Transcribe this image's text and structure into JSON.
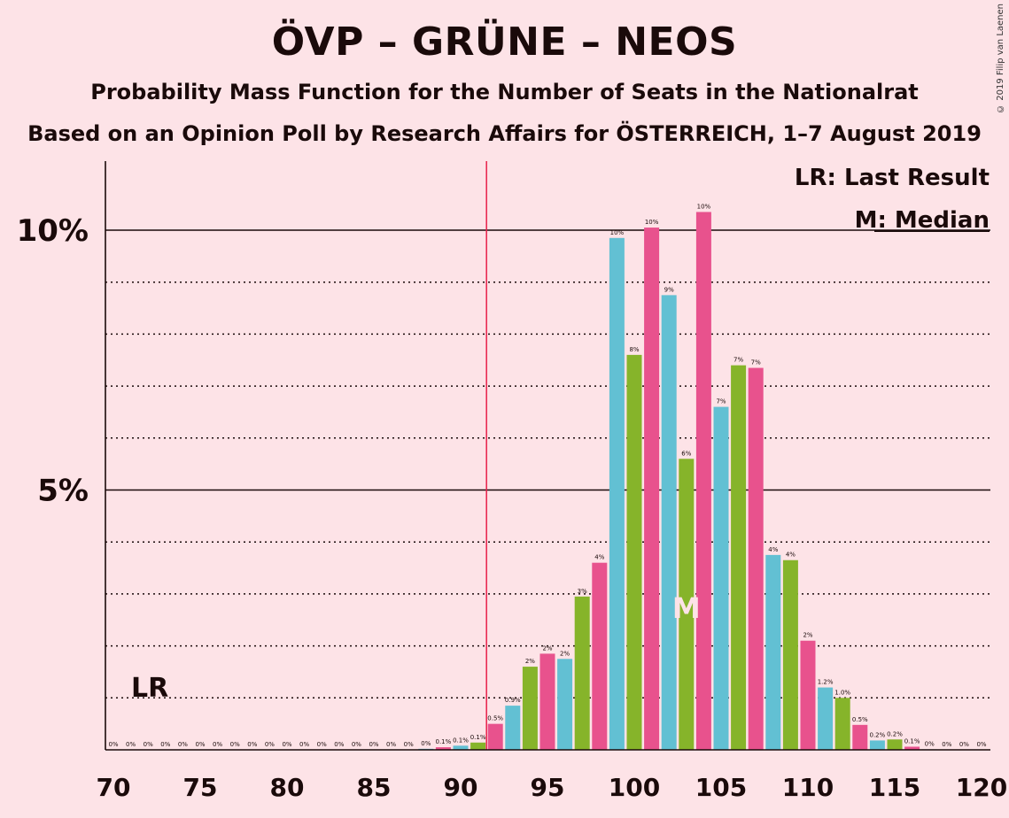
{
  "chart_data": {
    "type": "bar",
    "title": "ÖVP – GRÜNE – NEOS",
    "subtitle": "Probability Mass Function for the Number of Seats in the Nationalrat",
    "subtitle2": "Based on an Opinion Poll by Research Affairs for ÖSTERREICH, 1–7 August 2019",
    "copyright": "© 2019 Filip van Laenen",
    "xlabel": "",
    "ylabel": "",
    "xlim": [
      70,
      120
    ],
    "ylim": [
      0,
      11.3
    ],
    "x_ticks": [
      "70",
      "75",
      "80",
      "85",
      "90",
      "95",
      "100",
      "105",
      "110",
      "115",
      "120"
    ],
    "y_ticks": [
      {
        "value": 5,
        "label": "5%"
      },
      {
        "value": 10,
        "label": "10%"
      }
    ],
    "minor_gridlines": [
      1,
      2,
      3,
      4,
      6,
      7,
      8,
      9
    ],
    "last_result": 92,
    "median": 103,
    "legend": {
      "lr": "LR: Last Result",
      "median": "M: Median",
      "placement": "top-right"
    },
    "lr_label": "LR",
    "median_label": "M",
    "colors": {
      "pink": "#E8528D",
      "cyan": "#62C0D3",
      "green": "#86B42A",
      "lr_line": "#E8204A"
    },
    "bars": [
      {
        "x": 70,
        "value": 0,
        "label": "0%",
        "color": "cyan"
      },
      {
        "x": 71,
        "value": 0,
        "label": "0%",
        "color": "green"
      },
      {
        "x": 72,
        "value": 0,
        "label": "0%",
        "color": "pink"
      },
      {
        "x": 73,
        "value": 0,
        "label": "0%",
        "color": "cyan"
      },
      {
        "x": 74,
        "value": 0,
        "label": "0%",
        "color": "green"
      },
      {
        "x": 75,
        "value": 0,
        "label": "0%",
        "color": "pink"
      },
      {
        "x": 76,
        "value": 0,
        "label": "0%",
        "color": "cyan"
      },
      {
        "x": 77,
        "value": 0,
        "label": "0%",
        "color": "green"
      },
      {
        "x": 78,
        "value": 0,
        "label": "0%",
        "color": "pink"
      },
      {
        "x": 79,
        "value": 0,
        "label": "0%",
        "color": "cyan"
      },
      {
        "x": 80,
        "value": 0,
        "label": "0%",
        "color": "green"
      },
      {
        "x": 81,
        "value": 0,
        "label": "0%",
        "color": "pink"
      },
      {
        "x": 82,
        "value": 0,
        "label": "0%",
        "color": "cyan"
      },
      {
        "x": 83,
        "value": 0,
        "label": "0%",
        "color": "green"
      },
      {
        "x": 84,
        "value": 0,
        "label": "0%",
        "color": "pink"
      },
      {
        "x": 85,
        "value": 0,
        "label": "0%",
        "color": "cyan"
      },
      {
        "x": 86,
        "value": 0,
        "label": "0%",
        "color": "green"
      },
      {
        "x": 87,
        "value": 0,
        "label": "0%",
        "color": "pink"
      },
      {
        "x": 88,
        "value": 0.02,
        "label": "0%",
        "color": "cyan"
      },
      {
        "x": 89,
        "value": 0.05,
        "label": "0.1%",
        "color": "pink"
      },
      {
        "x": 90,
        "value": 0.08,
        "label": "0.1%",
        "color": "cyan"
      },
      {
        "x": 91,
        "value": 0.14,
        "label": "0.1%",
        "color": "green"
      },
      {
        "x": 92,
        "value": 0.5,
        "label": "0.5%",
        "color": "pink"
      },
      {
        "x": 93,
        "value": 0.85,
        "label": "0.9%",
        "color": "cyan"
      },
      {
        "x": 94,
        "value": 1.6,
        "label": "2%",
        "color": "green"
      },
      {
        "x": 95,
        "value": 1.85,
        "label": "2%",
        "color": "pink"
      },
      {
        "x": 96,
        "value": 1.75,
        "label": "2%",
        "color": "cyan"
      },
      {
        "x": 97,
        "value": 2.95,
        "label": "3%",
        "color": "green"
      },
      {
        "x": 98,
        "value": 3.6,
        "label": "4%",
        "color": "pink"
      },
      {
        "x": 99,
        "value": 9.85,
        "label": "10%",
        "color": "cyan"
      },
      {
        "x": 100,
        "value": 7.6,
        "label": "8%",
        "color": "green"
      },
      {
        "x": 101,
        "value": 10.05,
        "label": "10%",
        "color": "pink"
      },
      {
        "x": 102,
        "value": 8.75,
        "label": "9%",
        "color": "cyan"
      },
      {
        "x": 103,
        "value": 5.6,
        "label": "6%",
        "color": "green"
      },
      {
        "x": 104,
        "value": 10.35,
        "label": "10%",
        "color": "pink"
      },
      {
        "x": 105,
        "value": 6.6,
        "label": "7%",
        "color": "cyan"
      },
      {
        "x": 106,
        "value": 7.4,
        "label": "7%",
        "color": "green"
      },
      {
        "x": 107,
        "value": 7.35,
        "label": "7%",
        "color": "pink"
      },
      {
        "x": 108,
        "value": 3.75,
        "label": "4%",
        "color": "cyan"
      },
      {
        "x": 109,
        "value": 3.65,
        "label": "4%",
        "color": "green"
      },
      {
        "x": 110,
        "value": 2.1,
        "label": "2%",
        "color": "pink"
      },
      {
        "x": 111,
        "value": 1.2,
        "label": "1.2%",
        "color": "cyan"
      },
      {
        "x": 112,
        "value": 1.0,
        "label": "1.0%",
        "color": "green"
      },
      {
        "x": 113,
        "value": 0.48,
        "label": "0.5%",
        "color": "pink"
      },
      {
        "x": 114,
        "value": 0.18,
        "label": "0.2%",
        "color": "cyan"
      },
      {
        "x": 115,
        "value": 0.2,
        "label": "0.2%",
        "color": "green"
      },
      {
        "x": 116,
        "value": 0.06,
        "label": "0.1%",
        "color": "pink"
      },
      {
        "x": 117,
        "value": 0.01,
        "label": "0%",
        "color": "cyan"
      },
      {
        "x": 118,
        "value": 0,
        "label": "0%",
        "color": "green"
      },
      {
        "x": 119,
        "value": 0,
        "label": "0%",
        "color": "pink"
      },
      {
        "x": 120,
        "value": 0,
        "label": "0%",
        "color": "cyan"
      }
    ]
  }
}
